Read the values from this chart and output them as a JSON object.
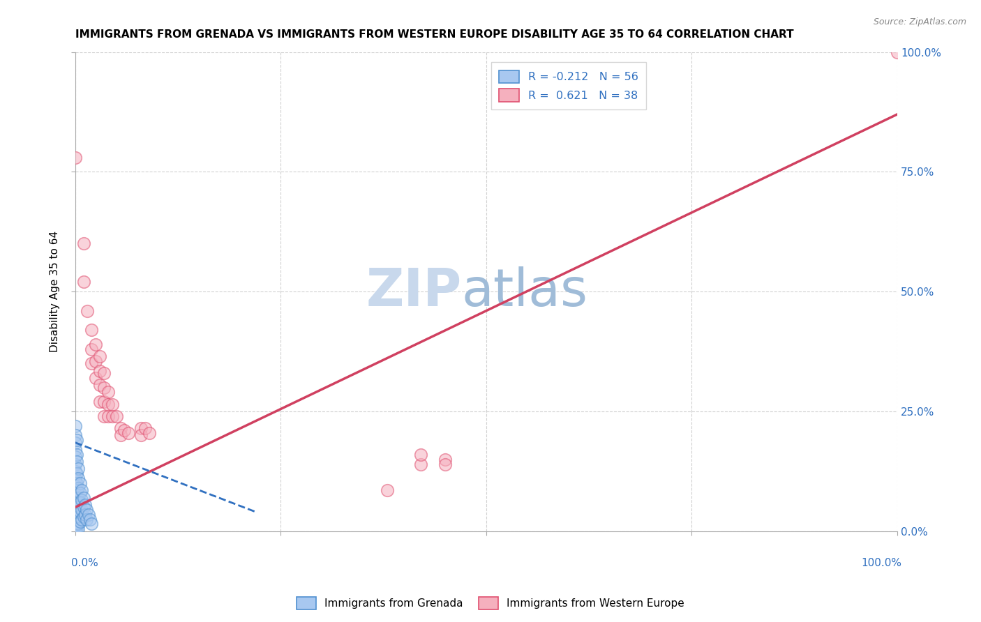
{
  "title": "IMMIGRANTS FROM GRENADA VS IMMIGRANTS FROM WESTERN EUROPE DISABILITY AGE 35 TO 64 CORRELATION CHART",
  "source": "Source: ZipAtlas.com",
  "ylabel": "Disability Age 35 to 64",
  "ylabel_right_labels": [
    "0.0%",
    "25.0%",
    "50.0%",
    "75.0%",
    "100.0%"
  ],
  "ylabel_right_positions": [
    0.0,
    0.25,
    0.5,
    0.75,
    1.0
  ],
  "watermark": "ZIPatlas",
  "legend_blue_r": "R = -0.212",
  "legend_blue_n": "N = 56",
  "legend_pink_r": "R =  0.621",
  "legend_pink_n": "N = 38",
  "blue_color": "#a8c8f0",
  "pink_color": "#f5b0be",
  "blue_edge_color": "#5090d0",
  "pink_edge_color": "#e05070",
  "blue_line_color": "#3070c0",
  "pink_line_color": "#d04060",
  "blue_scatter": [
    [
      0.0,
      0.22
    ],
    [
      0.0,
      0.2
    ],
    [
      0.0,
      0.185
    ],
    [
      0.0,
      0.17
    ],
    [
      0.0,
      0.155
    ],
    [
      0.0,
      0.14
    ],
    [
      0.0,
      0.125
    ],
    [
      0.0,
      0.11
    ],
    [
      0.0,
      0.095
    ],
    [
      0.0,
      0.08
    ],
    [
      0.0,
      0.065
    ],
    [
      0.0,
      0.05
    ],
    [
      0.0,
      0.038
    ],
    [
      0.0,
      0.025
    ],
    [
      0.0,
      0.015
    ],
    [
      0.0,
      0.008
    ],
    [
      0.0,
      0.002
    ],
    [
      0.002,
      0.19
    ],
    [
      0.002,
      0.16
    ],
    [
      0.002,
      0.145
    ],
    [
      0.002,
      0.12
    ],
    [
      0.002,
      0.1
    ],
    [
      0.002,
      0.085
    ],
    [
      0.002,
      0.07
    ],
    [
      0.002,
      0.058
    ],
    [
      0.002,
      0.042
    ],
    [
      0.002,
      0.028
    ],
    [
      0.002,
      0.015
    ],
    [
      0.002,
      0.005
    ],
    [
      0.004,
      0.13
    ],
    [
      0.004,
      0.11
    ],
    [
      0.004,
      0.09
    ],
    [
      0.004,
      0.07
    ],
    [
      0.004,
      0.05
    ],
    [
      0.004,
      0.03
    ],
    [
      0.004,
      0.015
    ],
    [
      0.004,
      0.005
    ],
    [
      0.006,
      0.1
    ],
    [
      0.006,
      0.08
    ],
    [
      0.006,
      0.06
    ],
    [
      0.006,
      0.04
    ],
    [
      0.006,
      0.02
    ],
    [
      0.008,
      0.085
    ],
    [
      0.008,
      0.065
    ],
    [
      0.008,
      0.045
    ],
    [
      0.008,
      0.025
    ],
    [
      0.01,
      0.07
    ],
    [
      0.01,
      0.05
    ],
    [
      0.01,
      0.03
    ],
    [
      0.012,
      0.055
    ],
    [
      0.012,
      0.035
    ],
    [
      0.014,
      0.045
    ],
    [
      0.014,
      0.025
    ],
    [
      0.016,
      0.035
    ],
    [
      0.018,
      0.025
    ],
    [
      0.02,
      0.015
    ]
  ],
  "pink_scatter": [
    [
      0.0,
      0.78
    ],
    [
      0.01,
      0.6
    ],
    [
      0.01,
      0.52
    ],
    [
      0.015,
      0.46
    ],
    [
      0.02,
      0.42
    ],
    [
      0.02,
      0.38
    ],
    [
      0.02,
      0.35
    ],
    [
      0.025,
      0.39
    ],
    [
      0.025,
      0.355
    ],
    [
      0.025,
      0.32
    ],
    [
      0.03,
      0.365
    ],
    [
      0.03,
      0.335
    ],
    [
      0.03,
      0.305
    ],
    [
      0.03,
      0.27
    ],
    [
      0.035,
      0.33
    ],
    [
      0.035,
      0.3
    ],
    [
      0.035,
      0.27
    ],
    [
      0.035,
      0.24
    ],
    [
      0.04,
      0.29
    ],
    [
      0.04,
      0.265
    ],
    [
      0.04,
      0.24
    ],
    [
      0.045,
      0.265
    ],
    [
      0.045,
      0.24
    ],
    [
      0.05,
      0.24
    ],
    [
      0.055,
      0.215
    ],
    [
      0.055,
      0.2
    ],
    [
      0.06,
      0.21
    ],
    [
      0.065,
      0.205
    ],
    [
      0.08,
      0.215
    ],
    [
      0.08,
      0.2
    ],
    [
      0.085,
      0.215
    ],
    [
      0.09,
      0.205
    ],
    [
      0.38,
      0.085
    ],
    [
      0.42,
      0.14
    ],
    [
      0.42,
      0.16
    ],
    [
      0.45,
      0.15
    ],
    [
      0.45,
      0.14
    ],
    [
      1.0,
      1.0
    ]
  ],
  "pink_line": [
    [
      0.0,
      0.05
    ],
    [
      1.0,
      0.87
    ]
  ],
  "blue_line": [
    [
      0.0,
      0.185
    ],
    [
      0.22,
      0.04
    ]
  ],
  "xlim": [
    0.0,
    1.0
  ],
  "ylim": [
    0.0,
    1.0
  ],
  "grid_color": "#cccccc",
  "background_color": "#ffffff",
  "watermark_color": "#c8d8ec",
  "title_fontsize": 11,
  "source_fontsize": 9
}
